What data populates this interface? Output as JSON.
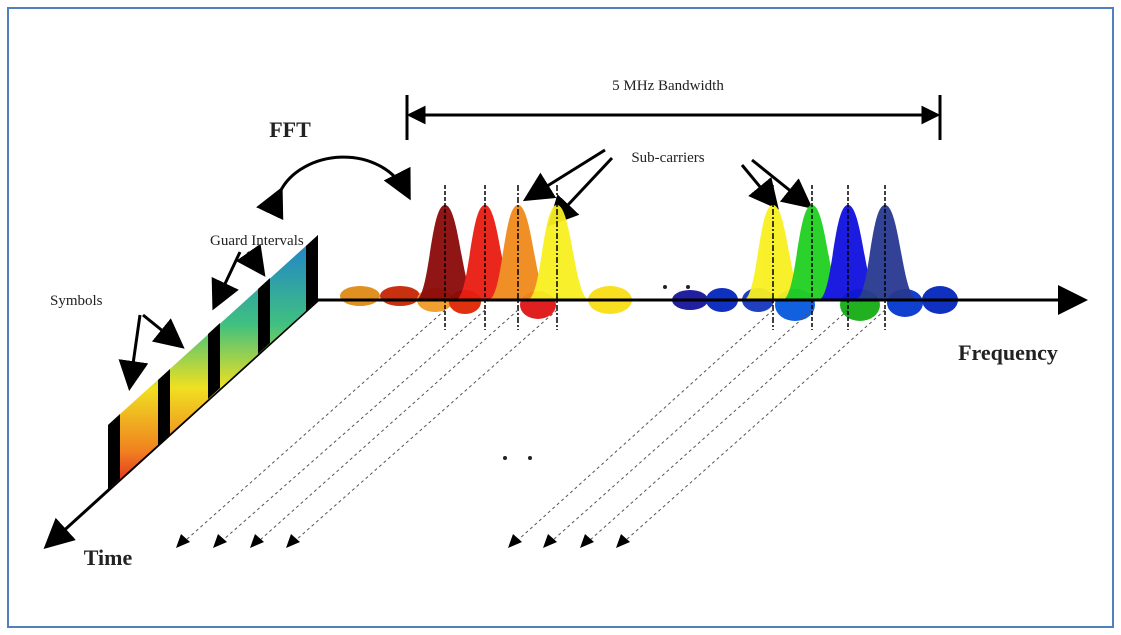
{
  "bandwidth_label": "5 MHz Bandwidth",
  "fft_label": "FFT",
  "subcarriers_label": "Sub-carriers",
  "guard_label": "Guard Intervals",
  "symbols_label": "Symbols",
  "frequency_label": "Frequency",
  "time_label": "Time"
}
